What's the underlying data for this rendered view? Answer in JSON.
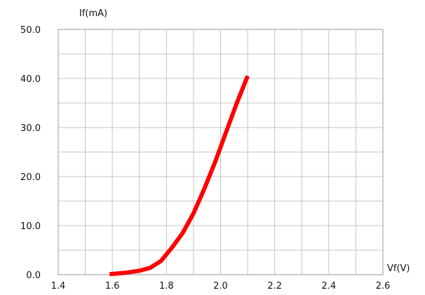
{
  "chart_data": {
    "type": "line",
    "title": "",
    "xlabel": "Vf(V)",
    "ylabel": "If(mA)",
    "xlim": [
      1.4,
      2.6
    ],
    "ylim": [
      0.0,
      50.0
    ],
    "x_ticks": [
      1.4,
      1.6,
      1.8,
      2.0,
      2.2,
      2.4,
      2.6
    ],
    "x_tick_labels": [
      "1.4",
      "1.6",
      "1.8",
      "2.0",
      "2.2",
      "2.4",
      "2.6"
    ],
    "y_ticks": [
      0,
      10,
      20,
      30,
      40,
      50
    ],
    "y_tick_labels": [
      "0.0",
      "10.0",
      "20.0",
      "30.0",
      "40.0",
      "50.0"
    ],
    "grid": true,
    "series": [
      {
        "color": "#ff0000",
        "x": [
          1.59,
          1.65,
          1.7,
          1.74,
          1.78,
          1.82,
          1.86,
          1.9,
          1.94,
          1.98,
          2.02,
          2.06,
          2.1
        ],
        "y": [
          0.1,
          0.4,
          0.8,
          1.4,
          2.8,
          5.5,
          8.5,
          12.5,
          17.5,
          23.0,
          29.0,
          35.0,
          40.5
        ]
      }
    ]
  }
}
